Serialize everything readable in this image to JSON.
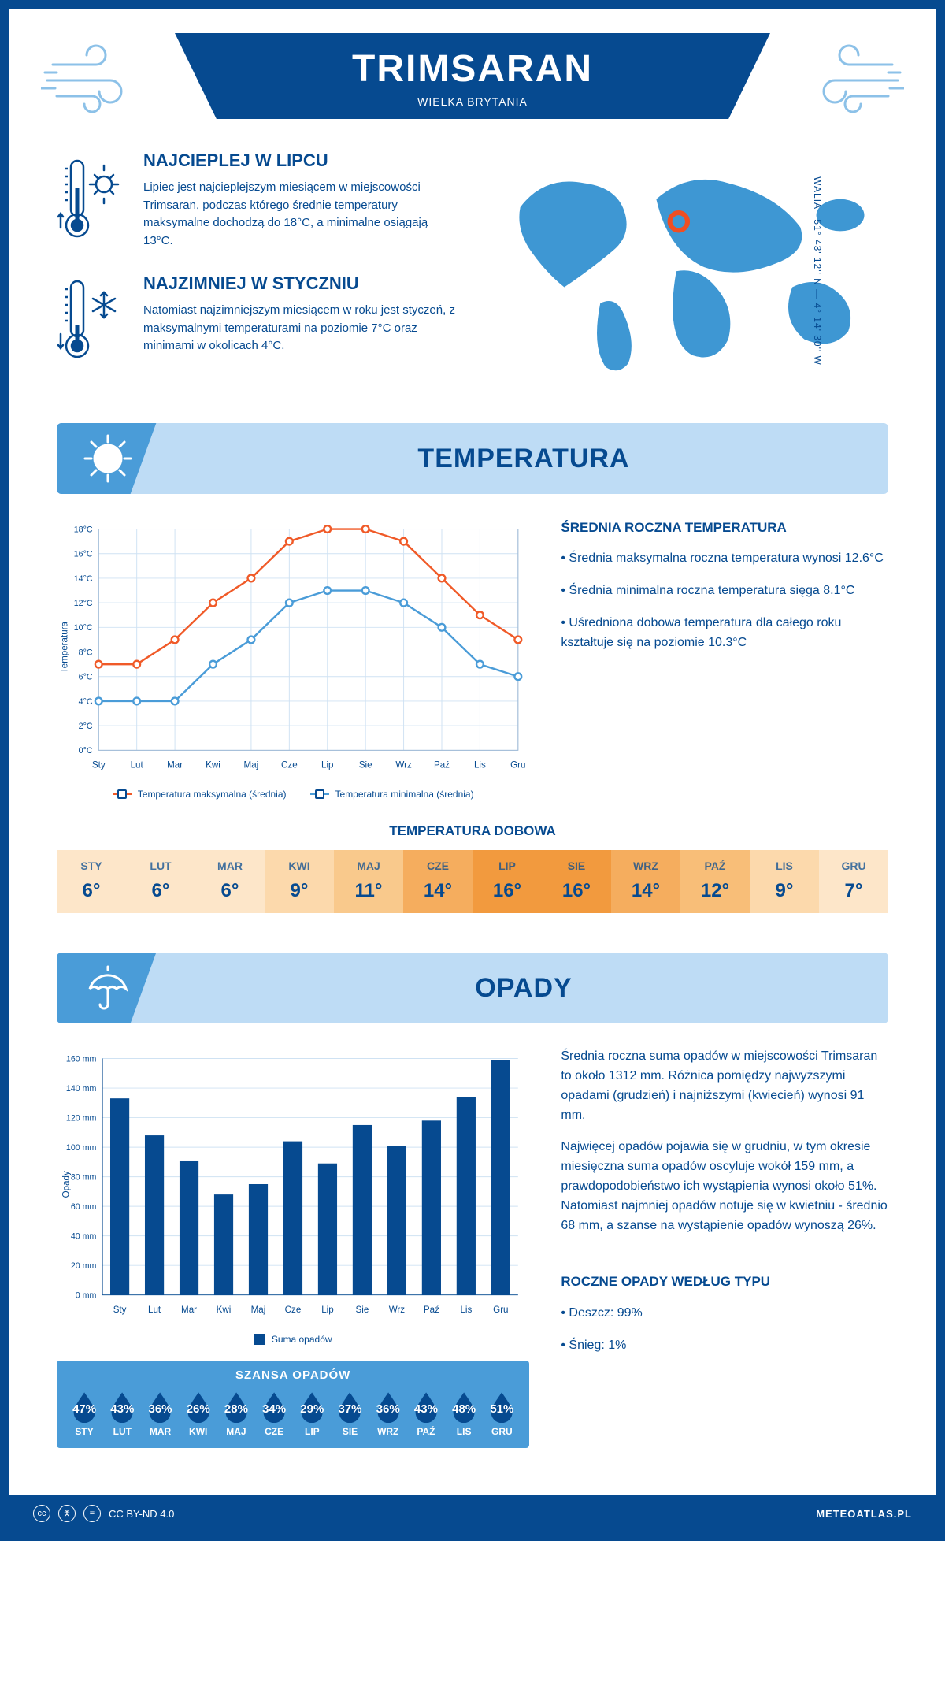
{
  "header": {
    "title": "TRIMSARAN",
    "subtitle": "WIELKA BRYTANIA"
  },
  "coords": "51° 43' 12'' N — 4° 14' 30'' W",
  "region": "WALIA",
  "warmest": {
    "title": "NAJCIEPLEJ W LIPCU",
    "text": "Lipiec jest najcieplejszym miesiącem w miejscowości Trimsaran, podczas którego średnie temperatury maksymalne dochodzą do 18°C, a minimalne osiągają 13°C."
  },
  "coldest": {
    "title": "NAJZIMNIEJ W STYCZNIU",
    "text": "Natomiast najzimniejszym miesiącem w roku jest styczeń, z maksymalnymi temperaturami na poziomie 7°C oraz minimami w okolicach 4°C."
  },
  "temp_section": {
    "title": "TEMPERATURA",
    "avg_title": "ŚREDNIA ROCZNA TEMPERATURA",
    "bullet1": "• Średnia maksymalna roczna temperatura wynosi 12.6°C",
    "bullet2": "• Średnia minimalna roczna temperatura sięga 8.1°C",
    "bullet3": "• Uśredniona dobowa temperatura dla całego roku kształtuje się na poziomie 10.3°C",
    "chart": {
      "months": [
        "Sty",
        "Lut",
        "Mar",
        "Kwi",
        "Maj",
        "Cze",
        "Lip",
        "Sie",
        "Wrz",
        "Paź",
        "Lis",
        "Gru"
      ],
      "max_series": [
        7,
        7,
        9,
        12,
        14,
        17,
        18,
        18,
        17,
        14,
        11,
        9
      ],
      "min_series": [
        4,
        4,
        4,
        7,
        9,
        12,
        13,
        13,
        12,
        10,
        7,
        6
      ],
      "ylim": [
        0,
        18
      ],
      "ytick_step": 2,
      "yunit": "°C",
      "ylabel": "Temperatura",
      "max_color": "#f05a28",
      "min_color": "#4a9cd8",
      "grid_color": "#cfe2f3",
      "legend_max": "Temperatura maksymalna (średnia)",
      "legend_min": "Temperatura minimalna (średnia)"
    },
    "daily_title": "TEMPERATURA DOBOWA",
    "daily": {
      "months": [
        "STY",
        "LUT",
        "MAR",
        "KWI",
        "MAJ",
        "CZE",
        "LIP",
        "SIE",
        "WRZ",
        "PAŹ",
        "LIS",
        "GRU"
      ],
      "values": [
        "6°",
        "6°",
        "6°",
        "9°",
        "11°",
        "14°",
        "16°",
        "16°",
        "14°",
        "12°",
        "9°",
        "7°"
      ],
      "colors": [
        "#fde6c9",
        "#fde6c9",
        "#fde6c9",
        "#fcd9ac",
        "#f9c98c",
        "#f5ad5e",
        "#f29a3e",
        "#f29a3e",
        "#f5ad5e",
        "#f8be78",
        "#fcd9ac",
        "#fde6c9"
      ]
    }
  },
  "rain_section": {
    "title": "OPADY",
    "para1": "Średnia roczna suma opadów w miejscowości Trimsaran to około 1312 mm. Różnica pomiędzy najwyższymi opadami (grudzień) i najniższymi (kwiecień) wynosi 91 mm.",
    "para2": "Najwięcej opadów pojawia się w grudniu, w tym okresie miesięczna suma opadów oscyluje wokół 159 mm, a prawdopodobieństwo ich wystąpienia wynosi około 51%. Natomiast najmniej opadów notuje się w kwietniu - średnio 68 mm, a szanse na wystąpienie opadów wynoszą 26%.",
    "chart": {
      "months": [
        "Sty",
        "Lut",
        "Mar",
        "Kwi",
        "Maj",
        "Cze",
        "Lip",
        "Sie",
        "Wrz",
        "Paź",
        "Lis",
        "Gru"
      ],
      "values": [
        133,
        108,
        91,
        68,
        75,
        104,
        89,
        115,
        101,
        118,
        134,
        159
      ],
      "ylim": [
        0,
        160
      ],
      "ytick_step": 20,
      "yunit": " mm",
      "ylabel": "Opady",
      "bar_color": "#064a90",
      "grid_color": "#cfe2f3",
      "legend": "Suma opadów"
    },
    "chance": {
      "title": "SZANSA OPADÓW",
      "months": [
        "STY",
        "LUT",
        "MAR",
        "KWI",
        "MAJ",
        "CZE",
        "LIP",
        "SIE",
        "WRZ",
        "PAŹ",
        "LIS",
        "GRU"
      ],
      "values": [
        "47%",
        "43%",
        "36%",
        "26%",
        "28%",
        "34%",
        "29%",
        "37%",
        "36%",
        "43%",
        "48%",
        "51%"
      ],
      "drop_color": "#064a90"
    },
    "type_title": "ROCZNE OPADY WEDŁUG TYPU",
    "type_rain": "• Deszcz: 99%",
    "type_snow": "• Śnieg: 1%"
  },
  "footer": {
    "license": "CC BY-ND 4.0",
    "site": "METEOATLAS.PL"
  }
}
